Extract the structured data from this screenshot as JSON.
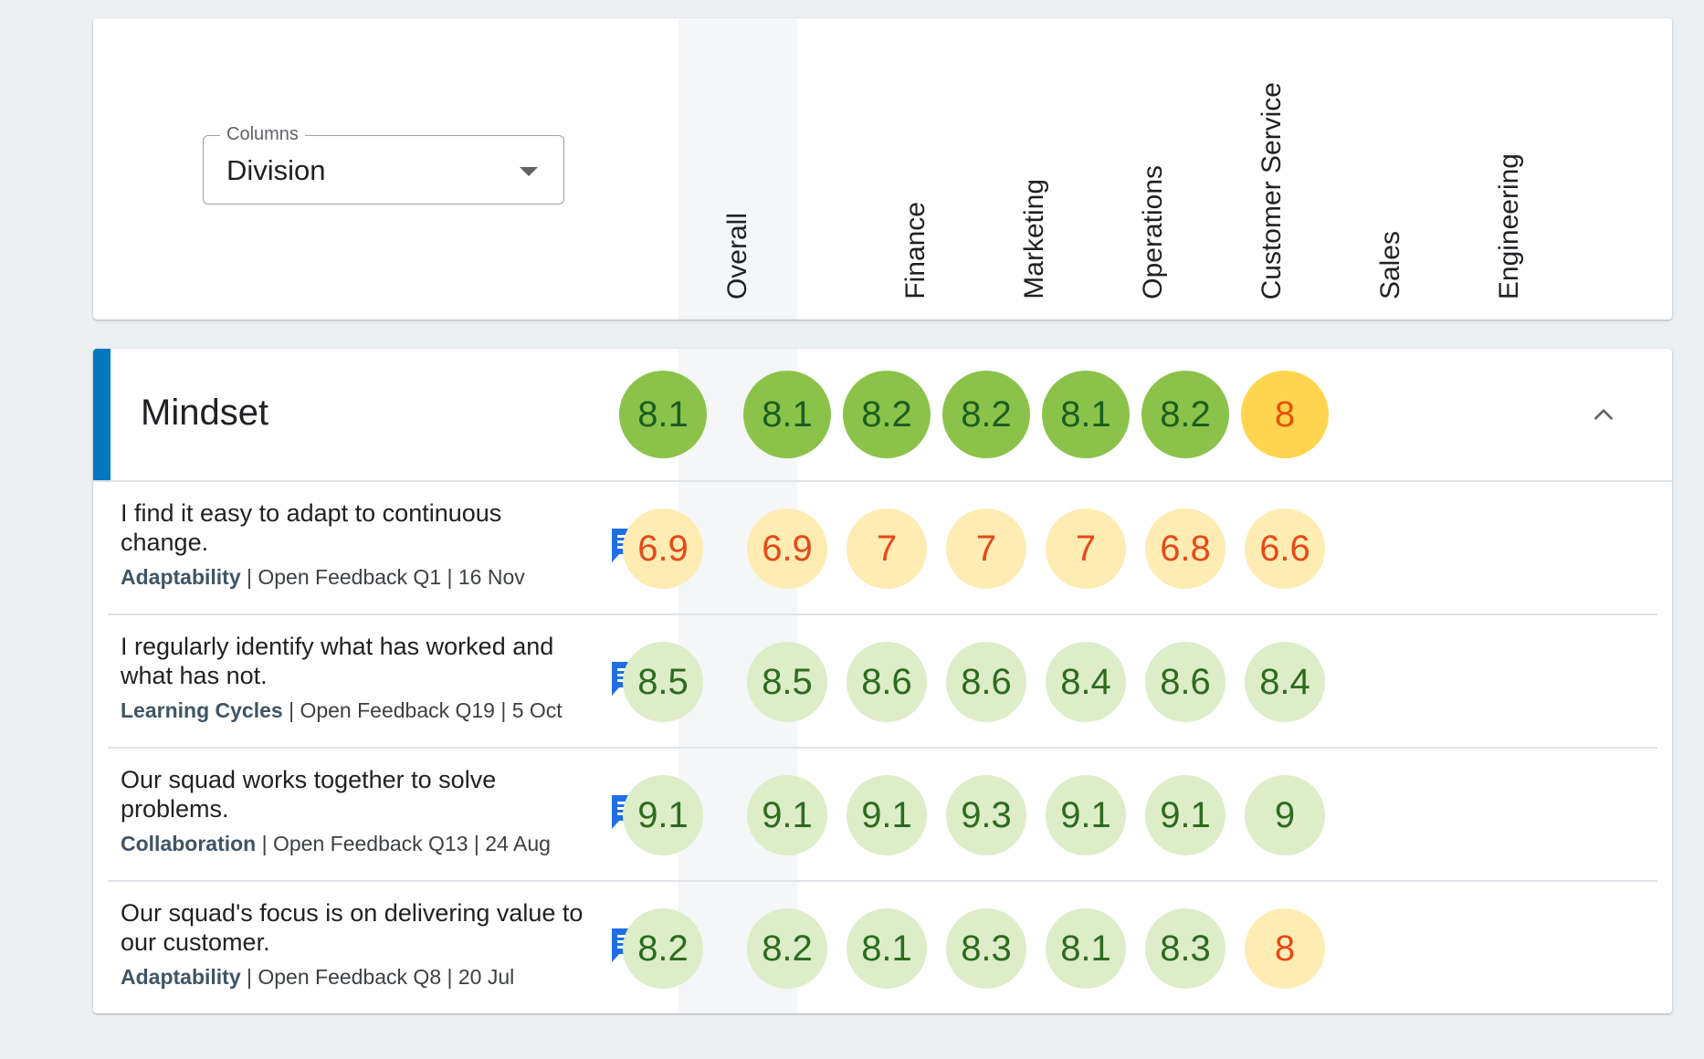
{
  "colors": {
    "accent_bar": "#0477bf",
    "strong_green": "#8bc34a",
    "strong_green_text": "#1b5e20",
    "strong_amber": "#ffd54f",
    "strong_amber_text": "#e65100",
    "light_green": "#dcedc8",
    "light_green_text": "#2e6b1f",
    "light_amber": "#ffecb3",
    "light_amber_text": "#e64a19"
  },
  "columns_select": {
    "legend": "Columns",
    "value": "Division",
    "icon": "dropdown-caret-icon"
  },
  "columns": [
    "Overall",
    "Finance",
    "Marketing",
    "Operations",
    "Customer Service",
    "Sales",
    "Engineering"
  ],
  "section": {
    "title": "Mindset",
    "collapse_icon": "chevron-up-icon",
    "scores": [
      {
        "value": "8.1",
        "tone": "strong_green"
      },
      {
        "value": "8.1",
        "tone": "strong_green"
      },
      {
        "value": "8.2",
        "tone": "strong_green"
      },
      {
        "value": "8.2",
        "tone": "strong_green"
      },
      {
        "value": "8.1",
        "tone": "strong_green"
      },
      {
        "value": "8.2",
        "tone": "strong_green"
      },
      {
        "value": "8",
        "tone": "strong_amber"
      }
    ]
  },
  "questions": [
    {
      "text": "I find it easy to adapt to continuous change.",
      "category": "Adaptability",
      "meta": " | Open Feedback Q1 | 16 Nov",
      "comment_icon": "comment-icon",
      "scores": [
        {
          "value": "6.9",
          "tone": "light_amber"
        },
        {
          "value": "6.9",
          "tone": "light_amber"
        },
        {
          "value": "7",
          "tone": "light_amber"
        },
        {
          "value": "7",
          "tone": "light_amber"
        },
        {
          "value": "7",
          "tone": "light_amber"
        },
        {
          "value": "6.8",
          "tone": "light_amber"
        },
        {
          "value": "6.6",
          "tone": "light_amber"
        }
      ]
    },
    {
      "text": "I regularly identify what has worked and what has not.",
      "category": "Learning Cycles",
      "meta": " | Open Feedback Q19 | 5 Oct",
      "comment_icon": "comment-icon",
      "scores": [
        {
          "value": "8.5",
          "tone": "light_green"
        },
        {
          "value": "8.5",
          "tone": "light_green"
        },
        {
          "value": "8.6",
          "tone": "light_green"
        },
        {
          "value": "8.6",
          "tone": "light_green"
        },
        {
          "value": "8.4",
          "tone": "light_green"
        },
        {
          "value": "8.6",
          "tone": "light_green"
        },
        {
          "value": "8.4",
          "tone": "light_green"
        }
      ]
    },
    {
      "text": "Our squad works together to solve problems.",
      "category": "Collaboration",
      "meta": " | Open Feedback Q13 | 24 Aug",
      "comment_icon": "comment-icon",
      "scores": [
        {
          "value": "9.1",
          "tone": "light_green"
        },
        {
          "value": "9.1",
          "tone": "light_green"
        },
        {
          "value": "9.1",
          "tone": "light_green"
        },
        {
          "value": "9.3",
          "tone": "light_green"
        },
        {
          "value": "9.1",
          "tone": "light_green"
        },
        {
          "value": "9.1",
          "tone": "light_green"
        },
        {
          "value": "9",
          "tone": "light_green"
        }
      ]
    },
    {
      "text": "Our squad's focus is on delivering value to our customer.",
      "category": "Adaptability",
      "meta": " | Open Feedback Q8 | 20 Jul",
      "comment_icon": "comment-icon",
      "scores": [
        {
          "value": "8.2",
          "tone": "light_green"
        },
        {
          "value": "8.2",
          "tone": "light_green"
        },
        {
          "value": "8.1",
          "tone": "light_green"
        },
        {
          "value": "8.3",
          "tone": "light_green"
        },
        {
          "value": "8.1",
          "tone": "light_green"
        },
        {
          "value": "8.3",
          "tone": "light_green"
        },
        {
          "value": "8",
          "tone": "light_amber"
        }
      ]
    }
  ]
}
